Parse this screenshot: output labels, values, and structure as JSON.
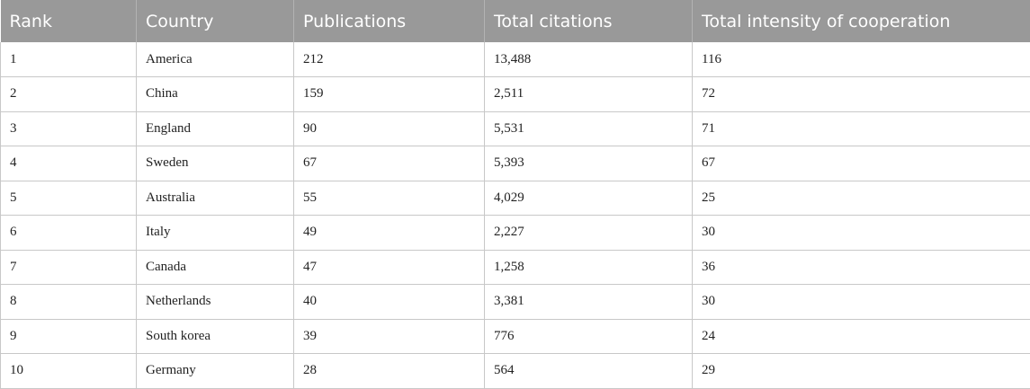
{
  "table": {
    "headers": [
      "Rank",
      "Country",
      "Publications",
      "Total citations",
      "Total intensity of cooperation"
    ],
    "rows": [
      [
        "1",
        "America",
        "212",
        "13,488",
        "116"
      ],
      [
        "2",
        "China",
        "159",
        "2,511",
        "72"
      ],
      [
        "3",
        "England",
        "90",
        "5,531",
        "71"
      ],
      [
        "4",
        "Sweden",
        "67",
        "5,393",
        "67"
      ],
      [
        "5",
        "Australia",
        "55",
        "4,029",
        "25"
      ],
      [
        "6",
        "Italy",
        "49",
        "2,227",
        "30"
      ],
      [
        "7",
        "Canada",
        "47",
        "1,258",
        "36"
      ],
      [
        "8",
        "Netherlands",
        "40",
        "3,381",
        "30"
      ],
      [
        "9",
        "South korea",
        "39",
        "776",
        "24"
      ],
      [
        "10",
        "Germany",
        "28",
        "564",
        "29"
      ]
    ]
  },
  "colors": {
    "header_background": "#999999",
    "header_text": "#ffffff",
    "grid_line": "#c8c8c8"
  }
}
